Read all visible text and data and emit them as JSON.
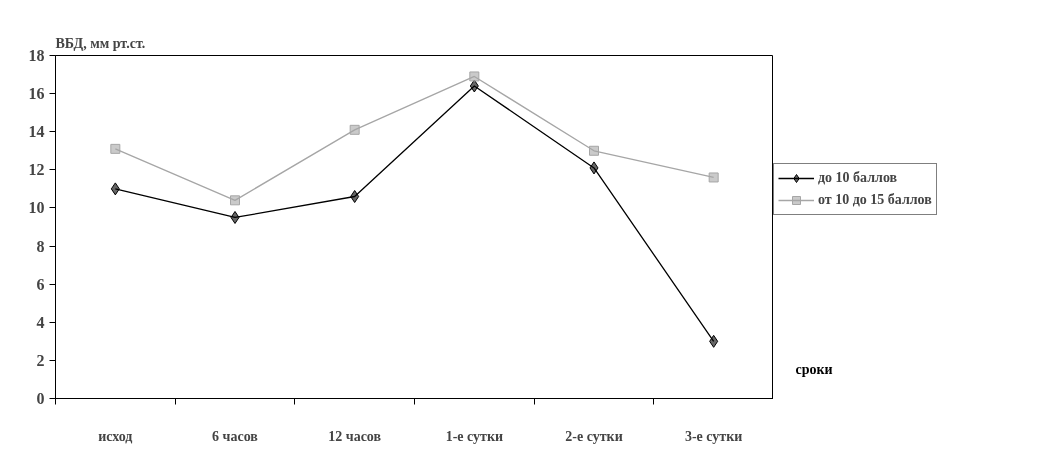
{
  "chart_data": {
    "type": "line",
    "ylabel": "ВБД, мм рт.ст.",
    "xlabel": "сроки",
    "categories": [
      "исход",
      "6 часов",
      "12 часов",
      "1-е сутки",
      "2-е сутки",
      "3-е сутки"
    ],
    "series": [
      {
        "name": "до 10 баллов",
        "color": "#000000",
        "marker": "diamond",
        "values": [
          11,
          9.5,
          10.6,
          16.4,
          12.1,
          3
        ]
      },
      {
        "name": "от 10 до 15 баллов",
        "color": "#a6a6a6",
        "marker": "square",
        "values": [
          13.1,
          10.4,
          14.1,
          16.9,
          13,
          11.6
        ]
      }
    ],
    "ylim": [
      0,
      18
    ],
    "yticks": [
      0,
      2,
      4,
      6,
      8,
      10,
      12,
      14,
      16,
      18
    ],
    "grid": false,
    "legend": "right"
  }
}
